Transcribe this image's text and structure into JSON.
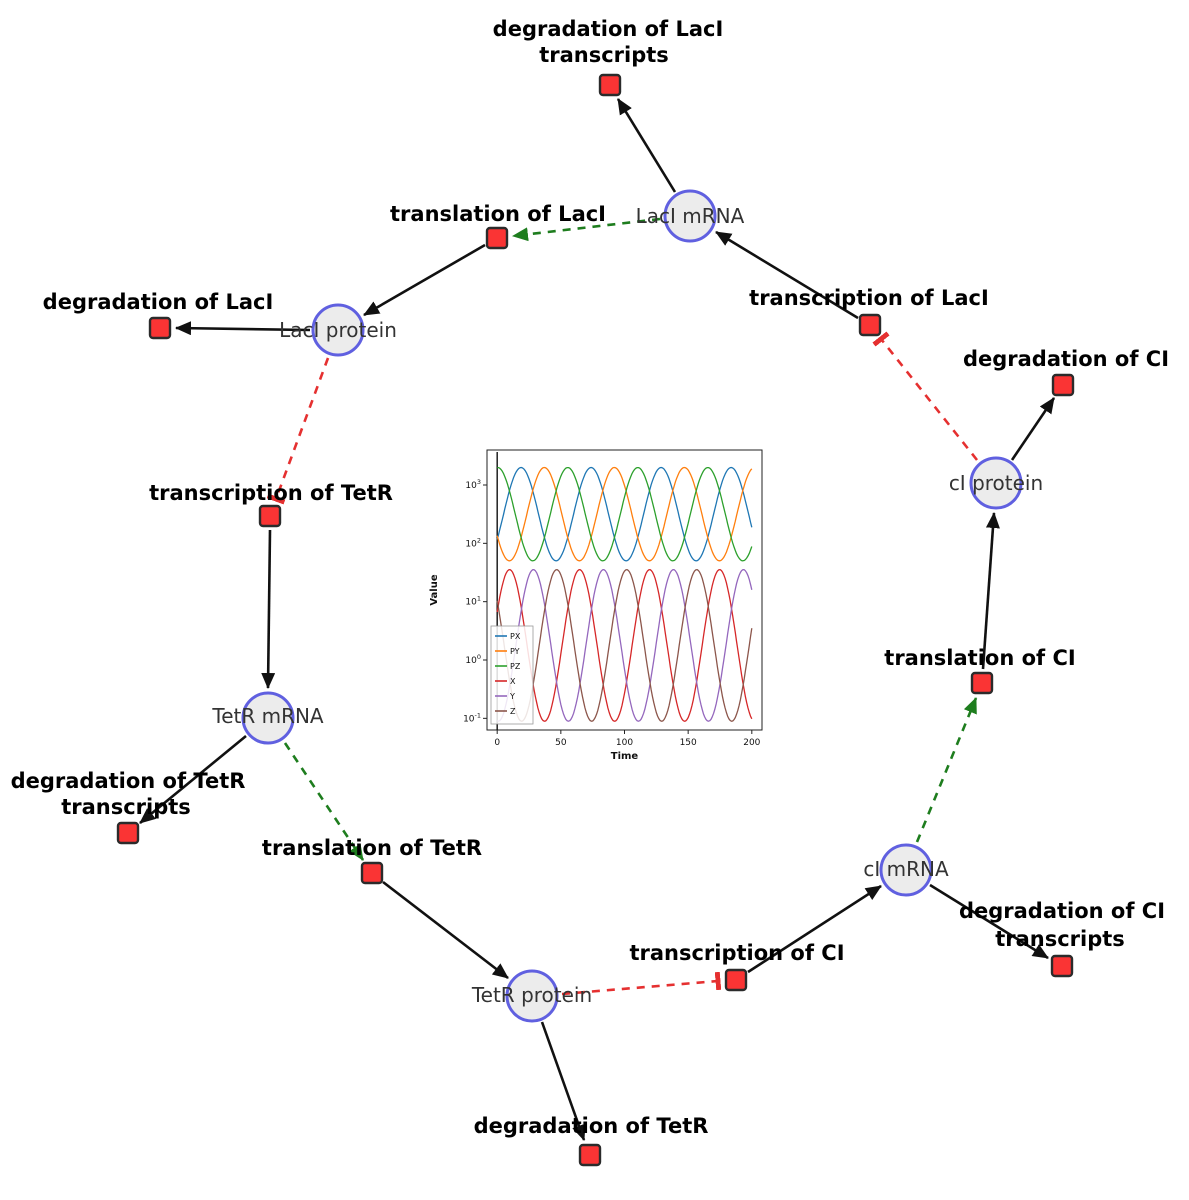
{
  "diagram": {
    "species": {
      "laci_mrna": {
        "label": "LacI mRNA"
      },
      "laci_protein": {
        "label": "LacI protein"
      },
      "tetr_mrna": {
        "label": "TetR mRNA"
      },
      "tetr_protein": {
        "label": "TetR protein"
      },
      "ci_mrna": {
        "label": "cI mRNA"
      },
      "ci_protein": {
        "label": "cI protein"
      }
    },
    "reactions": {
      "deg_laci_tx": {
        "line1": "degradation of LacI",
        "line2": "transcripts"
      },
      "transl_laci": {
        "label": "translation of LacI"
      },
      "transcr_laci": {
        "label": "transcription of LacI"
      },
      "deg_laci": {
        "label": "degradation of LacI"
      },
      "transcr_tetr": {
        "label": "transcription of TetR"
      },
      "deg_tetr_tx": {
        "line1": "degradation of TetR",
        "line2": "transcripts"
      },
      "transl_tetr": {
        "label": "translation of TetR"
      },
      "deg_tetr": {
        "label": "degradation of TetR"
      },
      "transcr_ci": {
        "label": "transcription of CI"
      },
      "deg_ci_tx": {
        "line1": "degradation of CI",
        "line2": "transcripts"
      },
      "transl_ci": {
        "label": "translation of CI"
      },
      "deg_ci": {
        "label": "degradation of CI"
      }
    },
    "colors": {
      "edge": "#111111",
      "activation": "#1e7d1e",
      "inhibition": "#e53030",
      "species_fill": "#ececec",
      "species_stroke": "#6060e0",
      "reaction_fill": "#fa3434",
      "reaction_stroke": "#2b2b2b"
    }
  },
  "chart_data": {
    "type": "line",
    "title": "",
    "xlabel": "Time",
    "ylabel": "Value",
    "x_range": [
      -8,
      208
    ],
    "x_ticks": [
      0,
      50,
      100,
      150,
      200
    ],
    "y_scale": "log",
    "y_ticks_log10": [
      -1,
      0,
      1,
      2,
      3
    ],
    "y_range_log10": [
      -1.2,
      3.6
    ],
    "grid": false,
    "legend_position": "lower left",
    "oscillation_period": 55,
    "series": [
      {
        "name": "PX",
        "color": "#1f77b4",
        "log_center": 2.5,
        "log_amp": 0.8,
        "phase": 5
      },
      {
        "name": "PY",
        "color": "#ff7f0e",
        "log_center": 2.5,
        "log_amp": 0.8,
        "phase": 23.3
      },
      {
        "name": "PZ",
        "color": "#2ca02c",
        "log_center": 2.5,
        "log_amp": 0.8,
        "phase": 41.7
      },
      {
        "name": "X",
        "color": "#d62728",
        "log_center": 0.25,
        "log_amp": 1.3,
        "phase": 51
      },
      {
        "name": "Y",
        "color": "#9467bd",
        "log_center": 0.25,
        "log_amp": 1.3,
        "phase": 14.7
      },
      {
        "name": "Z",
        "color": "#8c564b",
        "log_center": 0.25,
        "log_amp": 1.3,
        "phase": 33
      }
    ]
  }
}
